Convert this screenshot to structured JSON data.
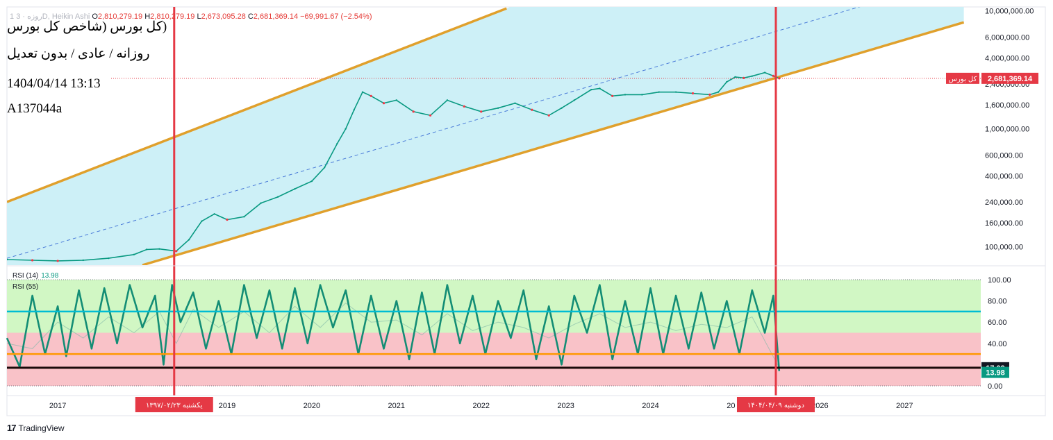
{
  "header": {
    "symbol": "1 روزه ·",
    "settings": "3D, Heikin Ashi",
    "open_label": "O",
    "open": "2,810,279.19",
    "high_label": "H",
    "high": "2,810,279.19",
    "low_label": "L",
    "low": "2,673,095.28",
    "close_label": "C",
    "close": "2,681,369.14",
    "change": "−69,991.67 (−2.54%)"
  },
  "notes": {
    "title": "(کل بورس (شاخص کل بورس",
    "subtitle": "روزانه / عادی / بدون تعدیل",
    "datetime": "1404/04/14 13:13",
    "code": "A137044a"
  },
  "price_tag": {
    "label": "کل بورس",
    "value": "2,681,369.14"
  },
  "rsi": {
    "label1": "RSI (14)",
    "value1": "13.98",
    "label2": "RSI (55)",
    "tag_fast": "13.98",
    "tag_slow": "17.09"
  },
  "vlines": [
    {
      "label": "یکشنبه ۱۳۹۷/۰۲/۲۳",
      "t": 2018.375
    },
    {
      "label": "دوشنبه ۱۴۰۴/۰۴/۰۹",
      "t": 2025.48
    }
  ],
  "branding": {
    "name": "TradingView"
  },
  "colors": {
    "channel": "#e0a02c",
    "channel_fill": "#cdf0f7",
    "up": "#089981",
    "down": "#f23645",
    "rsi_line": "#138d75",
    "rsi_upper_zone": "#d1f7c4",
    "rsi_lower_zone": "#f9c2c8",
    "level_cyan": "#00bcd4",
    "level_orange": "#ff9800",
    "level_black": "#1a0a0a",
    "vline": "#e53945",
    "tag": "#e53945"
  },
  "chart_data": [
    {
      "type": "line",
      "series": [
        {
          "x": [
            2016.4,
            2016.7,
            2017.0,
            2017.3,
            2017.6,
            2017.9,
            2018.05,
            2018.2,
            2018.4,
            2018.55,
            2018.7,
            2018.85,
            2019.0,
            2019.2,
            2019.4,
            2019.6,
            2019.8,
            2020.0,
            2020.15,
            2020.3,
            2020.4,
            2020.5,
            2020.6,
            2020.7,
            2020.85,
            2021.0,
            2021.2,
            2021.4,
            2021.6,
            2021.8,
            2022.0,
            2022.2,
            2022.4,
            2022.6,
            2022.8,
            2022.95,
            2023.1,
            2023.3,
            2023.4,
            2023.55,
            2023.7,
            2023.9,
            2024.1,
            2024.3,
            2024.5,
            2024.7,
            2024.8,
            2024.9,
            2025.0,
            2025.1,
            2025.2,
            2025.35,
            2025.45,
            2025.52
          ],
          "values": [
            78000,
            77000,
            76000,
            77000,
            80000,
            86000,
            95000,
            96000,
            92000,
            115000,
            165000,
            190000,
            170000,
            180000,
            235000,
            265000,
            310000,
            360000,
            470000,
            750000,
            1000000,
            1450000,
            2050000,
            1900000,
            1650000,
            1750000,
            1400000,
            1300000,
            1750000,
            1550000,
            1400000,
            1500000,
            1650000,
            1450000,
            1300000,
            1500000,
            1750000,
            2150000,
            2200000,
            1900000,
            1950000,
            1950000,
            2050000,
            2050000,
            2000000,
            1950000,
            2050000,
            2500000,
            2750000,
            2700000,
            2800000,
            3000000,
            2810279,
            2681369
          ]
        }
      ],
      "ylim": [
        70000,
        10000000
      ],
      "yscale": "log",
      "yticks": [
        "10,000,000.00",
        "6,000,000.00",
        "4,000,000.00",
        "2,400,000.00",
        "1,600,000.00",
        "1,000,000.00",
        "600,000.00",
        "400,000.00",
        "240,000.00",
        "160,000.00",
        "100,000.00"
      ],
      "ytick_values": [
        10000000,
        6000000,
        4000000,
        2400000,
        1600000,
        1000000,
        600000,
        400000,
        240000,
        160000,
        100000
      ],
      "channel": {
        "upper_start": [
          2016.4,
          240000
        ],
        "upper_end": [
          2022.3,
          10500000
        ],
        "lower_start": [
          2018.0,
          70000
        ],
        "lower_end": [
          2027.7,
          8000000
        ],
        "mid_start": [
          2016.4,
          80000
        ],
        "mid_end": [
          2026.5,
          11000000
        ]
      },
      "xlim": [
        2016.4,
        2027.9
      ],
      "xticks": [
        "2017",
        "2019",
        "2020",
        "2021",
        "2022",
        "2023",
        "2024",
        "20",
        "2026",
        "2027"
      ],
      "xtick_values": [
        2017.0,
        2019.0,
        2020.0,
        2021.0,
        2022.0,
        2023.0,
        2024.0,
        2024.95,
        2026.0,
        2027.0
      ]
    },
    {
      "type": "line",
      "ylim": [
        0,
        100
      ],
      "yticks": [
        "100.00",
        "80.00",
        "60.00",
        "40.00",
        "0.00"
      ],
      "ytick_values": [
        100,
        80,
        60,
        40,
        0
      ],
      "zones": {
        "upper": [
          50,
          100
        ],
        "lower": [
          0,
          50
        ]
      },
      "levels": [
        70,
        30,
        17.09
      ],
      "series": [
        {
          "x": [
            2016.4,
            2016.55,
            2016.7,
            2016.85,
            2017.0,
            2017.1,
            2017.25,
            2017.4,
            2017.55,
            2017.7,
            2017.85,
            2018.0,
            2018.15,
            2018.25,
            2018.35,
            2018.45,
            2018.6,
            2018.75,
            2018.9,
            2019.05,
            2019.2,
            2019.35,
            2019.5,
            2019.65,
            2019.8,
            2019.95,
            2020.1,
            2020.25,
            2020.4,
            2020.55,
            2020.7,
            2020.85,
            2021.0,
            2021.15,
            2021.3,
            2021.45,
            2021.6,
            2021.75,
            2021.9,
            2022.05,
            2022.2,
            2022.35,
            2022.5,
            2022.65,
            2022.8,
            2022.95,
            2023.1,
            2023.25,
            2023.4,
            2023.55,
            2023.7,
            2023.85,
            2024.0,
            2024.15,
            2024.3,
            2024.45,
            2024.6,
            2024.75,
            2024.9,
            2025.05,
            2025.2,
            2025.35,
            2025.45,
            2025.52
          ],
          "values": [
            45,
            18,
            85,
            30,
            75,
            28,
            90,
            35,
            92,
            40,
            95,
            55,
            85,
            20,
            95,
            60,
            88,
            35,
            80,
            30,
            95,
            45,
            90,
            35,
            92,
            40,
            95,
            55,
            90,
            30,
            85,
            35,
            80,
            25,
            88,
            30,
            95,
            40,
            85,
            30,
            80,
            45,
            90,
            25,
            75,
            20,
            85,
            50,
            95,
            25,
            80,
            30,
            92,
            30,
            85,
            35,
            88,
            35,
            80,
            30,
            90,
            50,
            85,
            14
          ]
        },
        {
          "x": [
            2016.4,
            2016.7,
            2017.0,
            2017.3,
            2017.6,
            2017.9,
            2018.2,
            2018.4,
            2018.6,
            2018.9,
            2019.2,
            2019.5,
            2019.8,
            2020.1,
            2020.4,
            2020.7,
            2021.0,
            2021.3,
            2021.6,
            2021.9,
            2022.2,
            2022.5,
            2022.8,
            2023.1,
            2023.4,
            2023.7,
            2024.0,
            2024.3,
            2024.6,
            2024.9,
            2025.2,
            2025.52
          ],
          "values": [
            40,
            35,
            60,
            45,
            65,
            50,
            70,
            40,
            72,
            55,
            70,
            50,
            75,
            55,
            78,
            60,
            62,
            48,
            68,
            52,
            60,
            55,
            45,
            58,
            68,
            55,
            60,
            52,
            58,
            55,
            65,
            17
          ]
        }
      ]
    }
  ]
}
